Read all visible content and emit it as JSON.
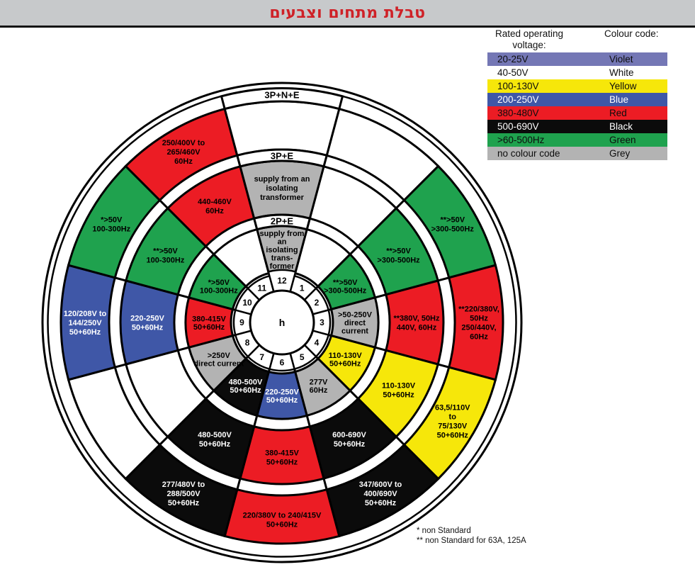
{
  "title": "טבלת מתחים וצבעים",
  "colors": {
    "violet": "#7477b5",
    "white": "#ffffff",
    "yellow": "#f6e70a",
    "blue": "#3f57a7",
    "red": "#ec1c24",
    "black": "#0b0b0b",
    "green": "#1fa24e",
    "grey": "#b3b3b3",
    "title_red": "#cf2127",
    "bar_grey": "#c7c9cb"
  },
  "legend": {
    "header_voltage_line1": "Rated operating",
    "header_voltage_line2": "voltage:",
    "header_colour": "Colour code:",
    "rows": [
      {
        "voltage": "20-25V",
        "colour": "Violet",
        "key": "violet"
      },
      {
        "voltage": "40-50V",
        "colour": "White",
        "key": "white"
      },
      {
        "voltage": "100-130V",
        "colour": "Yellow",
        "key": "yellow"
      },
      {
        "voltage": "200-250V",
        "colour": "Blue",
        "key": "blue"
      },
      {
        "voltage": "380-480V",
        "colour": "Red",
        "key": "red"
      },
      {
        "voltage": "500-690V",
        "colour": "Black",
        "key": "black"
      },
      {
        "voltage": ">60-500Hz",
        "colour": "Green",
        "key": "green"
      },
      {
        "voltage": "no colour code",
        "colour": "Grey",
        "key": "grey"
      }
    ]
  },
  "wheel": {
    "center_label": "h",
    "hours": [
      "1",
      "2",
      "3",
      "4",
      "5",
      "6",
      "7",
      "8",
      "9",
      "10",
      "11",
      "12"
    ],
    "rings": [
      {
        "name": "2P+E",
        "sectors": [
          null,
          {
            "color": "green",
            "lines": [
              "**>50V",
              ">300-500Hz"
            ]
          },
          {
            "color": "grey",
            "lines": [
              ">50-250V",
              "direct",
              "current"
            ]
          },
          {
            "color": "yellow",
            "lines": [
              "110-130V",
              "50+60Hz"
            ]
          },
          {
            "color": "grey",
            "lines": [
              "277V",
              "60Hz"
            ]
          },
          {
            "color": "blue",
            "lines": [
              "220-250V",
              "50+60Hz"
            ]
          },
          {
            "color": "black",
            "lines": [
              "480-500V",
              "50+60Hz"
            ]
          },
          {
            "color": "grey",
            "lines": [
              ">250V",
              "direct current"
            ]
          },
          {
            "color": "red",
            "lines": [
              "380-415V",
              "50+60Hz"
            ]
          },
          {
            "color": "green",
            "lines": [
              "*>50V",
              "100-300Hz"
            ]
          },
          null,
          {
            "color": "grey",
            "lines": [
              "supply from",
              "an",
              "isolating",
              "trans-",
              "former"
            ]
          }
        ]
      },
      {
        "name": "3P+E",
        "sectors": [
          null,
          {
            "color": "green",
            "lines": [
              "**>50V",
              ">300-500Hz"
            ]
          },
          {
            "color": "red",
            "lines": [
              "**380V, 50Hz",
              "440V, 60Hz"
            ]
          },
          {
            "color": "yellow",
            "lines": [
              "110-130V",
              "50+60Hz"
            ]
          },
          {
            "color": "black",
            "lines": [
              "600-690V",
              "50+60Hz"
            ]
          },
          {
            "color": "red",
            "lines": [
              "380-415V",
              "50+60Hz"
            ]
          },
          {
            "color": "black",
            "lines": [
              "480-500V",
              "50+60Hz"
            ]
          },
          null,
          {
            "color": "blue",
            "lines": [
              "220-250V",
              "50+60Hz"
            ]
          },
          {
            "color": "green",
            "lines": [
              "**>50V",
              "100-300Hz"
            ]
          },
          {
            "color": "red",
            "lines": [
              "440-460V",
              "60Hz"
            ]
          },
          {
            "color": "grey",
            "lines": [
              "supply from an",
              "isolating",
              "transformer"
            ]
          }
        ]
      },
      {
        "name": "3P+N+E",
        "sectors": [
          null,
          {
            "color": "green",
            "lines": [
              "**>50V",
              ">300-500Hz"
            ]
          },
          {
            "color": "red",
            "lines": [
              "**220/380V,",
              "50Hz",
              "250/440V,",
              "60Hz"
            ]
          },
          {
            "color": "yellow",
            "lines": [
              "63,5/110V",
              "to",
              "75/130V",
              "50+60Hz"
            ]
          },
          {
            "color": "black",
            "lines": [
              "347/600V to",
              "400/690V",
              "50+60Hz"
            ]
          },
          {
            "color": "red",
            "lines": [
              "220/380V to 240/415V",
              "50+60Hz"
            ]
          },
          {
            "color": "black",
            "lines": [
              "277/480V to",
              "288/500V",
              "50+60Hz"
            ]
          },
          null,
          {
            "color": "blue",
            "lines": [
              "120/208V to",
              "144/250V",
              "50+60Hz"
            ]
          },
          {
            "color": "green",
            "lines": [
              "*>50V",
              "100-300Hz"
            ]
          },
          {
            "color": "red",
            "lines": [
              "250/400V to",
              "265/460V",
              "60Hz"
            ]
          },
          null
        ]
      }
    ]
  },
  "footnotes": [
    "* non Standard",
    "** non Standard for 63A, 125A"
  ]
}
